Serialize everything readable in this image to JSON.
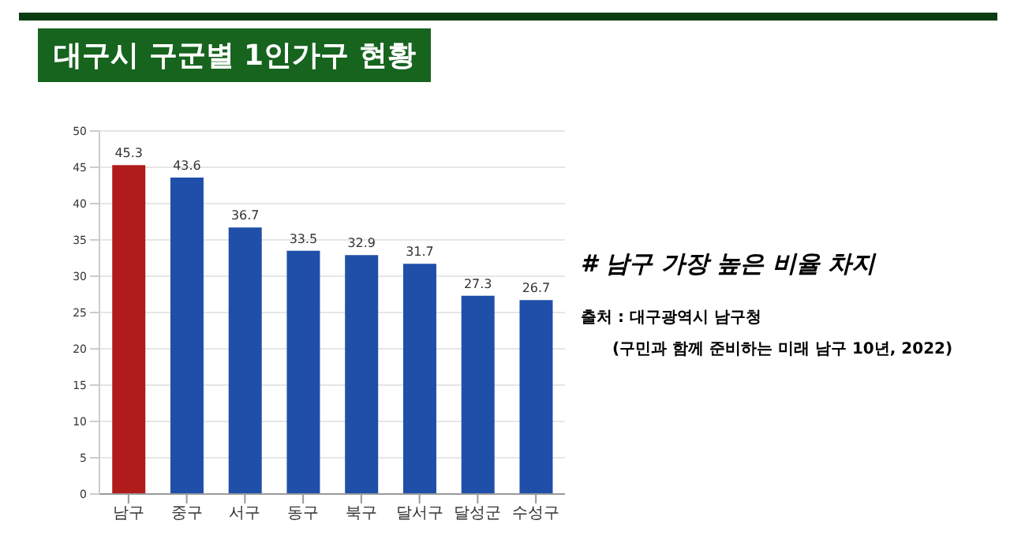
{
  "chart_data": {
    "type": "bar",
    "title": "대구시 구군별 1인가구 현황",
    "categories": [
      "남구",
      "중구",
      "서구",
      "동구",
      "북구",
      "달서구",
      "달성군",
      "수성구"
    ],
    "values": [
      45.3,
      43.6,
      36.7,
      33.5,
      32.9,
      31.7,
      27.3,
      26.7
    ],
    "colors": [
      "#b01c1c",
      "#1f4fa8",
      "#1f4fa8",
      "#1f4fa8",
      "#1f4fa8",
      "#1f4fa8",
      "#1f4fa8",
      "#1f4fa8"
    ],
    "ylim": [
      0,
      50
    ],
    "yticks": [
      0,
      5,
      10,
      15,
      20,
      25,
      30,
      35,
      40,
      45,
      50
    ],
    "grid": "y",
    "data_labels": true,
    "annotations": [
      "# 남구 가장 높은 비율 차지",
      "출처 : 대구광역시 남구청",
      "(구민과 함께 준비하는 미래 남구 10년, 2022)"
    ]
  }
}
